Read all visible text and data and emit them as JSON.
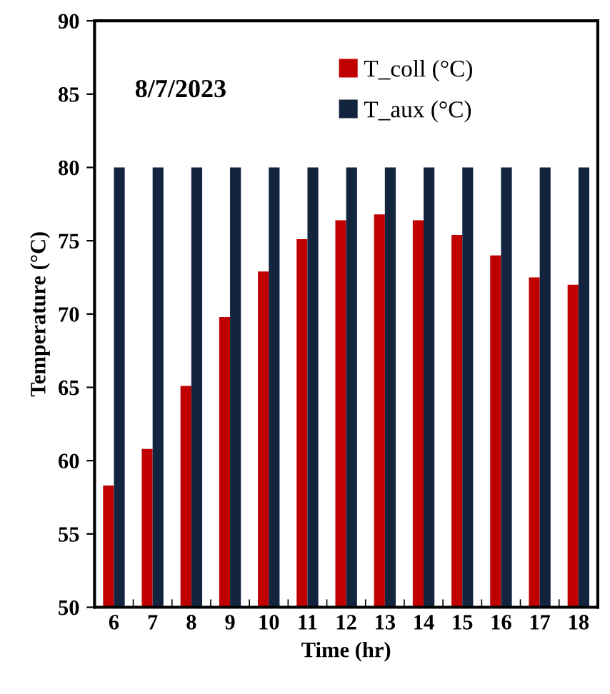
{
  "chart_data": {
    "type": "bar",
    "categories": [
      "6",
      "7",
      "8",
      "9",
      "10",
      "11",
      "12",
      "13",
      "14",
      "15",
      "16",
      "17",
      "18"
    ],
    "series": [
      {
        "name": "T_coll (°C)",
        "color": "#c00000",
        "values": [
          58.3,
          60.8,
          65.1,
          69.8,
          72.9,
          75.1,
          76.4,
          76.8,
          76.4,
          75.4,
          74.0,
          72.5,
          72.0
        ]
      },
      {
        "name": "T_aux (°C)",
        "color": "#13243f",
        "values": [
          80,
          80,
          80,
          80,
          80,
          80,
          80,
          80,
          80,
          80,
          80,
          80,
          80
        ]
      }
    ],
    "xlabel": "Time (hr)",
    "ylabel": "Temperature (°C)",
    "ylim": [
      50,
      90
    ],
    "yticks": [
      50,
      55,
      60,
      65,
      70,
      75,
      80,
      85,
      90
    ],
    "annotations": [
      "8/7/2023"
    ],
    "legend": "top",
    "grid": false
  }
}
